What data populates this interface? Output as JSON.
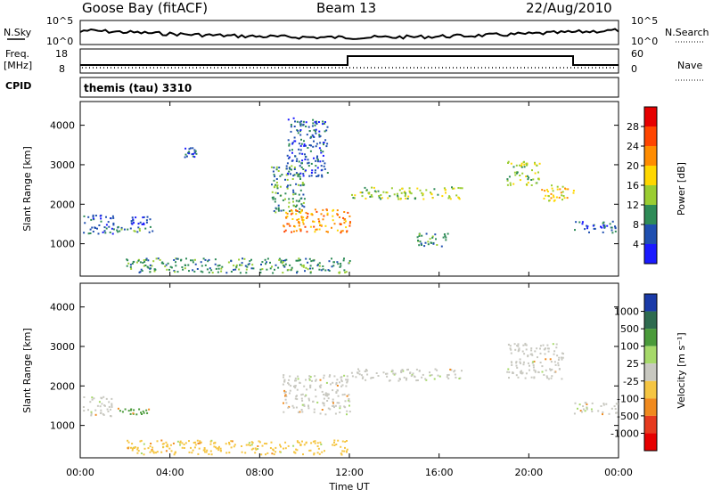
{
  "header": {
    "station": "Goose Bay (fitACF)",
    "beam": "Beam 13",
    "date": "22/Aug/2010"
  },
  "top_panels": {
    "nsky_label": "N.Sky",
    "nsky_ticks": [
      "10^5",
      "10^0"
    ],
    "nsearch_label": "N.Search",
    "nsearch_ticks": [
      "10^5",
      "10^0"
    ],
    "freq_label_1": "Freq.",
    "freq_label_2": "[MHz]",
    "freq_ticks": [
      "18",
      "8"
    ],
    "nave_label": "Nave",
    "nave_ticks": [
      "60",
      "0"
    ],
    "cpid_label": "CPID",
    "cpid_text": "themis (tau) 3310"
  },
  "chart_data": [
    {
      "type": "heatmap",
      "panel": "power",
      "ylabel": "Slant Range [km]",
      "xlabel": "",
      "yticks": [
        "1000",
        "2000",
        "3000",
        "4000"
      ],
      "ylim": [
        180,
        4600
      ],
      "xlim_hours": [
        0,
        24
      ],
      "colorbar_label": "Power [dB]",
      "colorbar_ticks": [
        "4",
        "8",
        "12",
        "16",
        "20",
        "24",
        "28"
      ],
      "colorbar_colors": [
        "#1a1aff",
        "#1f4fb0",
        "#2e8b57",
        "#9acd32",
        "#ffd700",
        "#ff8c00",
        "#ff4500",
        "#e60000"
      ],
      "echo_regions": [
        {
          "t": [
            0.1,
            1.5
          ],
          "range": [
            1250,
            1750
          ],
          "level": 1
        },
        {
          "t": [
            1.5,
            3.2
          ],
          "range": [
            1300,
            1450
          ],
          "level": 2
        },
        {
          "t": [
            2.2,
            3.2
          ],
          "range": [
            1500,
            1700
          ],
          "level": 1
        },
        {
          "t": [
            4.6,
            5.2
          ],
          "range": [
            3200,
            3450
          ],
          "level": 1
        },
        {
          "t": [
            8.5,
            10.0
          ],
          "range": [
            1800,
            3000
          ],
          "level": 2
        },
        {
          "t": [
            9.0,
            12.0
          ],
          "range": [
            1300,
            1900
          ],
          "level": 5
        },
        {
          "t": [
            9.2,
            11.0
          ],
          "range": [
            2700,
            4200
          ],
          "level": 1
        },
        {
          "t": [
            12.0,
            17.0
          ],
          "range": [
            2150,
            2450
          ],
          "level": 3
        },
        {
          "t": [
            15.0,
            16.5
          ],
          "range": [
            950,
            1300
          ],
          "level": 2
        },
        {
          "t": [
            19.0,
            20.5
          ],
          "range": [
            2500,
            3100
          ],
          "level": 3
        },
        {
          "t": [
            20.5,
            22.0
          ],
          "range": [
            2100,
            2500
          ],
          "level": 4
        },
        {
          "t": [
            22.0,
            24.0
          ],
          "range": [
            1300,
            1600
          ],
          "level": 1
        },
        {
          "t": [
            2.0,
            12.0
          ],
          "range": [
            280,
            650
          ],
          "level": 2
        }
      ]
    },
    {
      "type": "heatmap",
      "panel": "velocity",
      "ylabel": "Slant Range [km]",
      "xlabel": "Time UT",
      "yticks": [
        "1000",
        "2000",
        "3000",
        "4000"
      ],
      "ylim": [
        180,
        4600
      ],
      "xticks": [
        "00:00",
        "04:00",
        "08:00",
        "12:00",
        "16:00",
        "20:00",
        "00:00"
      ],
      "colorbar_label": "Velocity [m s⁻¹]",
      "colorbar_ticks": [
        "1000",
        "500",
        "100",
        "25",
        "-25",
        "-100",
        "-500",
        "-1000"
      ],
      "colorbar_colors": [
        "#1a3aa8",
        "#2e6b4f",
        "#4a9a3a",
        "#a6d96a",
        "#c8c8c0",
        "#f5c542",
        "#f08a1e",
        "#e63a1e",
        "#e60000"
      ],
      "echo_regions": [
        {
          "t": [
            0.1,
            1.5
          ],
          "range": [
            1250,
            1750
          ],
          "vel": "gs"
        },
        {
          "t": [
            1.5,
            3.2
          ],
          "range": [
            1300,
            1450
          ],
          "vel": "pos"
        },
        {
          "t": [
            9.0,
            12.0
          ],
          "range": [
            1300,
            2300
          ],
          "vel": "gs"
        },
        {
          "t": [
            12.0,
            17.0
          ],
          "range": [
            2150,
            2450
          ],
          "vel": "gs"
        },
        {
          "t": [
            19.0,
            21.5
          ],
          "range": [
            2200,
            3100
          ],
          "vel": "gs"
        },
        {
          "t": [
            22.0,
            24.0
          ],
          "range": [
            1300,
            1600
          ],
          "vel": "gs"
        },
        {
          "t": [
            2.0,
            12.0
          ],
          "range": [
            280,
            650
          ],
          "vel": "neg"
        }
      ]
    }
  ]
}
